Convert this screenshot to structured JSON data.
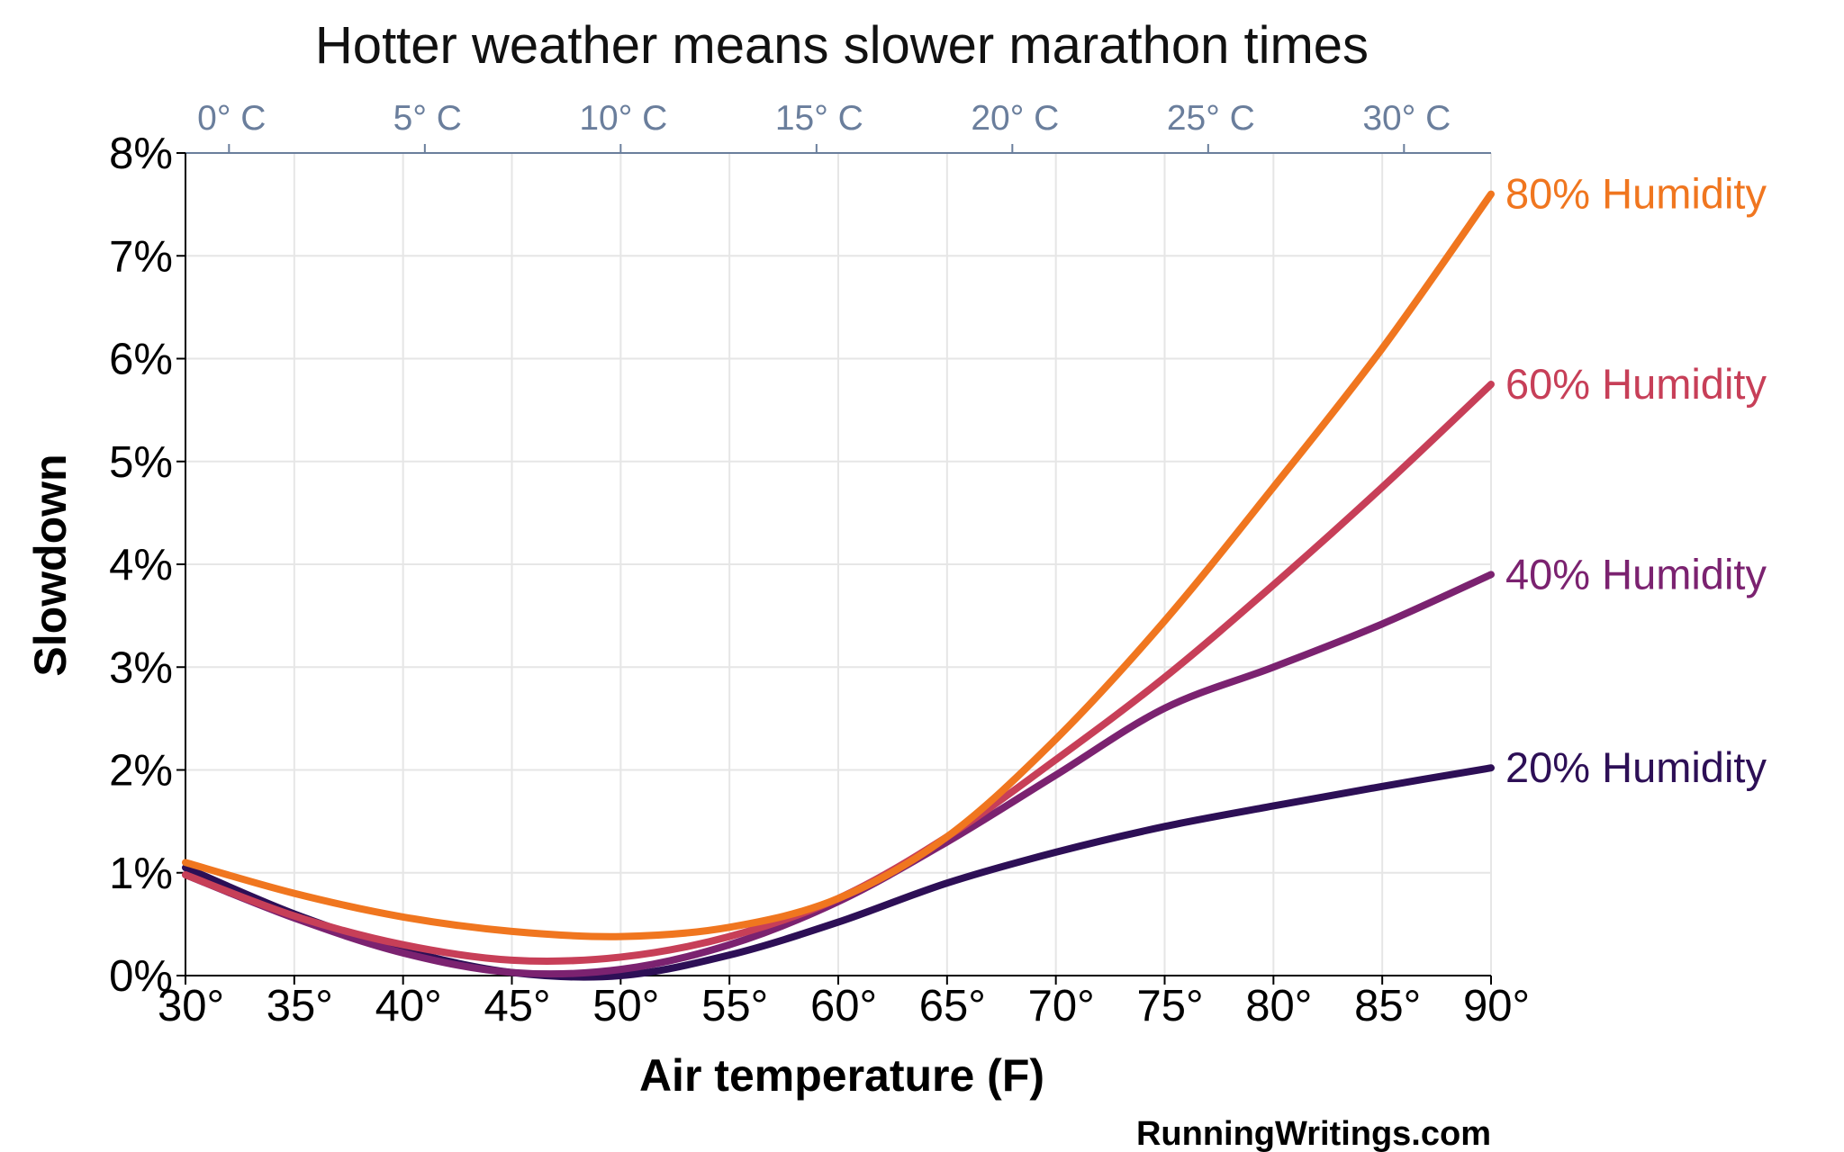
{
  "chart_data": {
    "type": "line",
    "title": "Hotter weather means slower marathon times",
    "xlabel": "Air temperature (F)",
    "ylabel": "Slowdown",
    "credit": "RunningWritings.com",
    "xlim": [
      30,
      90
    ],
    "ylim": [
      0,
      8
    ],
    "x_ticks": [
      30,
      35,
      40,
      45,
      50,
      55,
      60,
      65,
      70,
      75,
      80,
      85,
      90
    ],
    "x_tick_labels": [
      "30°",
      "35°",
      "40°",
      "45°",
      "50°",
      "55°",
      "60°",
      "65°",
      "70°",
      "75°",
      "80°",
      "85°",
      "90°"
    ],
    "y_ticks": [
      0,
      1,
      2,
      3,
      4,
      5,
      6,
      7,
      8
    ],
    "y_tick_labels": [
      "0%",
      "1%",
      "2%",
      "3%",
      "4%",
      "5%",
      "6%",
      "7%",
      "8%"
    ],
    "secondary_x_axis": {
      "position": "top",
      "ticks_celsius": [
        0,
        5,
        10,
        15,
        20,
        25,
        30
      ],
      "tick_labels": [
        "0° C",
        "5° C",
        "10° C",
        "15° C",
        "20° C",
        "25° C",
        "30° C"
      ]
    },
    "grid": true,
    "legend": "direct labels at right end of lines",
    "x": [
      30,
      35,
      40,
      45,
      50,
      55,
      60,
      65,
      70,
      75,
      80,
      85,
      90
    ],
    "series": [
      {
        "name": "20% Humidity",
        "color": "#2d0f56",
        "values": [
          1.05,
          0.6,
          0.25,
          0.03,
          0.0,
          0.2,
          0.52,
          0.9,
          1.2,
          1.45,
          1.65,
          1.84,
          2.02
        ]
      },
      {
        "name": "40% Humidity",
        "color": "#7b2270",
        "values": [
          0.98,
          0.56,
          0.22,
          0.03,
          0.06,
          0.3,
          0.72,
          1.3,
          1.95,
          2.6,
          3.0,
          3.42,
          3.9
        ]
      },
      {
        "name": "60% Humidity",
        "color": "#c73f58",
        "values": [
          0.98,
          0.58,
          0.3,
          0.15,
          0.18,
          0.38,
          0.75,
          1.35,
          2.1,
          2.9,
          3.8,
          4.75,
          5.75
        ]
      },
      {
        "name": "80% Humidity",
        "color": "#f0761f",
        "values": [
          1.1,
          0.8,
          0.57,
          0.43,
          0.38,
          0.47,
          0.75,
          1.35,
          2.3,
          3.45,
          4.75,
          6.1,
          7.6
        ]
      }
    ]
  }
}
